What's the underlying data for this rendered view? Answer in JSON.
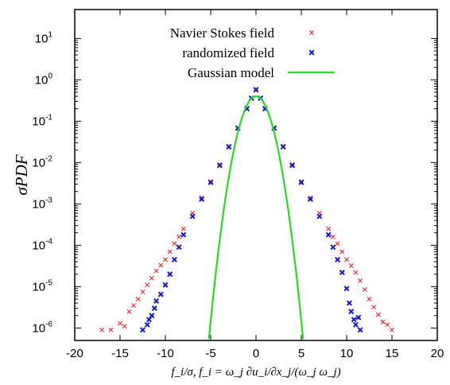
{
  "chart_data": {
    "type": "scatter",
    "xlabel": "f_i/σ, f_i = ω_j ∂u_i/∂x_j/(ω_j ω_j)",
    "ylabel": "σPDF",
    "xlim": [
      -20,
      20
    ],
    "ylim": [
      5e-07,
      50
    ],
    "yscale": "log",
    "grid": false,
    "legend_position": "top-center",
    "x_ticks": [
      "-20",
      "-15",
      "-10",
      "-5",
      "0",
      "5",
      "10",
      "15",
      "20"
    ],
    "y_ticks": [
      {
        "base": "10",
        "exp": "-6",
        "value": 1e-06
      },
      {
        "base": "10",
        "exp": "-5",
        "value": 1e-05
      },
      {
        "base": "10",
        "exp": "-4",
        "value": 0.0001
      },
      {
        "base": "10",
        "exp": "-3",
        "value": 0.001
      },
      {
        "base": "10",
        "exp": "-2",
        "value": 0.01
      },
      {
        "base": "10",
        "exp": "-1",
        "value": 0.1
      },
      {
        "base": "10",
        "exp": "0",
        "value": 1
      },
      {
        "base": "10",
        "exp": "1",
        "value": 10
      }
    ],
    "series": [
      {
        "name": "Navier Stokes field",
        "marker": "x",
        "color": "#e8161b",
        "points": [
          [
            -17,
            9e-07
          ],
          [
            -16,
            9e-07
          ],
          [
            -15,
            1.3e-06
          ],
          [
            -14.5,
            1.1e-06
          ],
          [
            -14,
            2.5e-06
          ],
          [
            -13.5,
            3.5e-06
          ],
          [
            -13,
            5e-06
          ],
          [
            -12.5,
            7.5e-06
          ],
          [
            -12,
            1.1e-05
          ],
          [
            -11.5,
            1.6e-05
          ],
          [
            -11,
            2.4e-05
          ],
          [
            -10.5,
            3.3e-05
          ],
          [
            -10,
            4.5e-05
          ],
          [
            -9.5,
            7e-05
          ],
          [
            -9,
            0.00011
          ],
          [
            -8.5,
            0.00016
          ],
          [
            -8,
            0.00025
          ],
          [
            -7,
            0.0006
          ],
          [
            -6,
            0.0014
          ],
          [
            -5,
            0.0035
          ],
          [
            -4,
            0.009
          ],
          [
            -3,
            0.025
          ],
          [
            -2,
            0.07
          ],
          [
            -1,
            0.2
          ],
          [
            -0.5,
            0.35
          ],
          [
            0,
            0.55
          ],
          [
            0.5,
            0.35
          ],
          [
            1,
            0.2
          ],
          [
            2,
            0.07
          ],
          [
            3,
            0.025
          ],
          [
            4,
            0.009
          ],
          [
            5,
            0.0035
          ],
          [
            6,
            0.0014
          ],
          [
            7,
            0.0006
          ],
          [
            8,
            0.00025
          ],
          [
            8.5,
            0.00016
          ],
          [
            9,
            0.00011
          ],
          [
            9.5,
            7e-05
          ],
          [
            10,
            4.5e-05
          ],
          [
            10.5,
            3.2e-05
          ],
          [
            11,
            2.2e-05
          ],
          [
            11.5,
            1.4e-05
          ],
          [
            12,
            8.5e-06
          ],
          [
            12.5,
            5e-06
          ],
          [
            13,
            3.2e-06
          ],
          [
            13.5,
            2.1e-06
          ],
          [
            14,
            1.4e-06
          ],
          [
            14.5,
            1.2e-06
          ],
          [
            15,
            9e-07
          ]
        ]
      },
      {
        "name": "randomized field",
        "marker": "x-bold",
        "color": "#1616d6",
        "points": [
          [
            -12.5,
            9e-07
          ],
          [
            -12,
            1.2e-06
          ],
          [
            -11.8,
            1.6e-06
          ],
          [
            -11.5,
            2e-06
          ],
          [
            -11.2,
            3e-06
          ],
          [
            -11,
            4.5e-06
          ],
          [
            -10.5,
            6.5e-06
          ],
          [
            -10,
            1.1e-05
          ],
          [
            -9.5,
            2e-05
          ],
          [
            -9,
            4.5e-05
          ],
          [
            -8.5,
            9e-05
          ],
          [
            -8,
            0.00018
          ],
          [
            -7,
            0.0005
          ],
          [
            -6,
            0.0013
          ],
          [
            -5,
            0.0033
          ],
          [
            -4,
            0.0085
          ],
          [
            -3,
            0.024
          ],
          [
            -2,
            0.068
          ],
          [
            -1,
            0.2
          ],
          [
            -0.5,
            0.36
          ],
          [
            0,
            0.58
          ],
          [
            0.5,
            0.36
          ],
          [
            1,
            0.2
          ],
          [
            2,
            0.068
          ],
          [
            3,
            0.024
          ],
          [
            4,
            0.0085
          ],
          [
            5,
            0.0033
          ],
          [
            6,
            0.0013
          ],
          [
            7,
            0.0005
          ],
          [
            8,
            0.00018
          ],
          [
            8.5,
            9e-05
          ],
          [
            9,
            4.5e-05
          ],
          [
            9.5,
            2.2e-05
          ],
          [
            10,
            9e-06
          ],
          [
            10.3,
            4e-06
          ],
          [
            10.5,
            2.5e-06
          ],
          [
            10.8,
            1.6e-06
          ],
          [
            11,
            1.2e-06
          ],
          [
            11.3,
            1.8e-06
          ],
          [
            11.5,
            9e-07
          ]
        ]
      },
      {
        "name": "Gaussian model",
        "marker": "line",
        "color": "#22dd22",
        "function": "exp(-x^2/2)/sqrt(2*pi)",
        "x_range": [
          -5.2,
          5.2
        ]
      }
    ]
  }
}
